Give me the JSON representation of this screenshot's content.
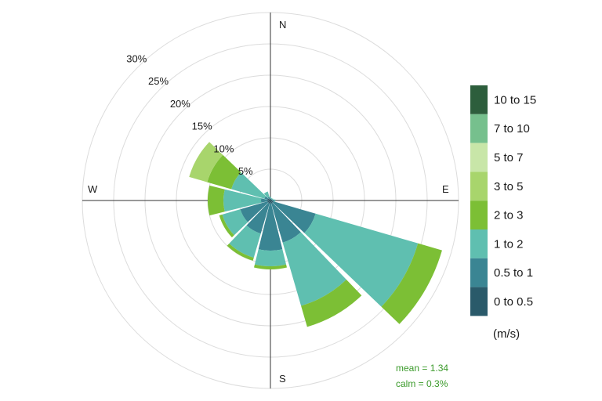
{
  "chart_data": {
    "type": "windrose",
    "directions": [
      "N",
      "E",
      "S",
      "W"
    ],
    "radial_ticks": [
      "5%",
      "10%",
      "15%",
      "20%",
      "25%",
      "30%"
    ],
    "radial_tick_values": [
      5,
      10,
      15,
      20,
      25,
      30
    ],
    "legend_title": "(m/s)",
    "legend_colors": [
      "#2d5e3c",
      "#76c08d",
      "#c8e6a8",
      "#a8d56c",
      "#7cbf35",
      "#5fbfb0",
      "#3a8593",
      "#2a5a6a"
    ],
    "speed_bins": [
      "10 to 15",
      "7 to 10",
      "5 to 7",
      "3 to 5",
      "2 to 3",
      "1 to 2",
      "0.5 to 1",
      "0 to 0.5"
    ],
    "stack_order": [
      "0 to 0.5",
      "0.5 to 1",
      "1 to 2",
      "2 to 3",
      "3 to 5"
    ],
    "stack_colors": [
      "#2a5a6a",
      "#3a8593",
      "#5fbfb0",
      "#7cbf35",
      "#a8d56c"
    ],
    "sector_width_deg": 30,
    "sectors": [
      {
        "dir_deg": 0,
        "cumulative_pct": [
          0.2,
          0.4,
          0.6,
          0.6,
          0.6
        ]
      },
      {
        "dir_deg": 30,
        "cumulative_pct": [
          0.2,
          0.3,
          0.4,
          0.4,
          0.4
        ]
      },
      {
        "dir_deg": 60,
        "cumulative_pct": [
          0.2,
          0.3,
          0.5,
          0.5,
          0.5
        ]
      },
      {
        "dir_deg": 90,
        "cumulative_pct": [
          0.3,
          0.6,
          0.8,
          0.8,
          0.8
        ]
      },
      {
        "dir_deg": 120,
        "cumulative_pct": [
          0.5,
          7.5,
          24.5,
          28.5,
          28.5
        ]
      },
      {
        "dir_deg": 150,
        "cumulative_pct": [
          0.5,
          7.0,
          17.5,
          21.0,
          21.0
        ]
      },
      {
        "dir_deg": 180,
        "cumulative_pct": [
          0.5,
          8.0,
          10.5,
          11.0,
          11.0
        ]
      },
      {
        "dir_deg": 210,
        "cumulative_pct": [
          0.5,
          5.5,
          9.5,
          10.0,
          10.0
        ]
      },
      {
        "dir_deg": 240,
        "cumulative_pct": [
          0.5,
          5.0,
          8.0,
          8.5,
          8.5
        ]
      },
      {
        "dir_deg": 270,
        "cumulative_pct": [
          0.5,
          1.5,
          7.5,
          10.0,
          10.0
        ]
      },
      {
        "dir_deg": 300,
        "cumulative_pct": [
          0.5,
          1.0,
          6.5,
          10.5,
          13.5
        ]
      },
      {
        "dir_deg": 330,
        "cumulative_pct": [
          0.3,
          0.6,
          1.5,
          1.5,
          1.5
        ]
      }
    ],
    "annotations": [
      "mean = 1.34",
      "calm = 0.3%"
    ]
  }
}
